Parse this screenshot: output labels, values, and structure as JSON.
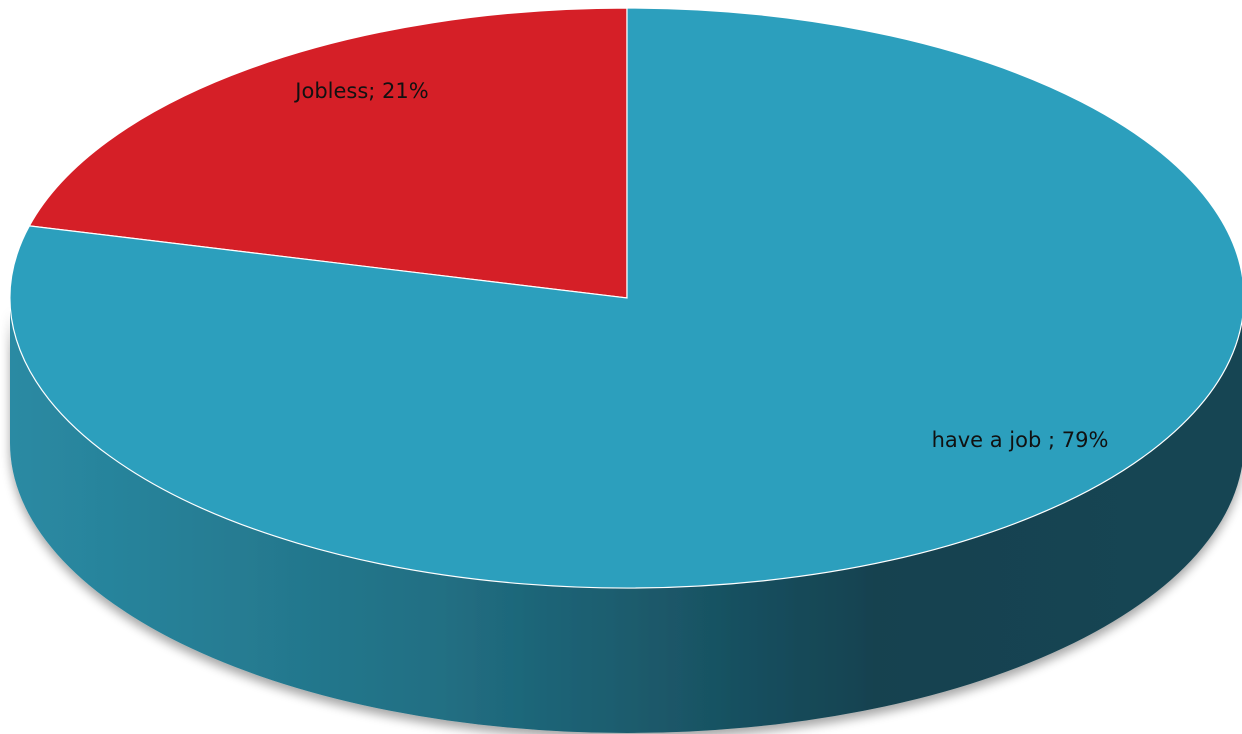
{
  "chart_data": {
    "type": "pie",
    "slices": [
      {
        "label": "Jobless",
        "value": 21,
        "display": "Jobless; 21%",
        "color": "#d51f27",
        "side_color": "#8a1419"
      },
      {
        "label": "have a job ",
        "value": 79,
        "display": "have a job ; 79%",
        "color": "#2c9fbd",
        "side_color": "#1e6c80"
      }
    ],
    "unit": "%",
    "style": "3d"
  }
}
